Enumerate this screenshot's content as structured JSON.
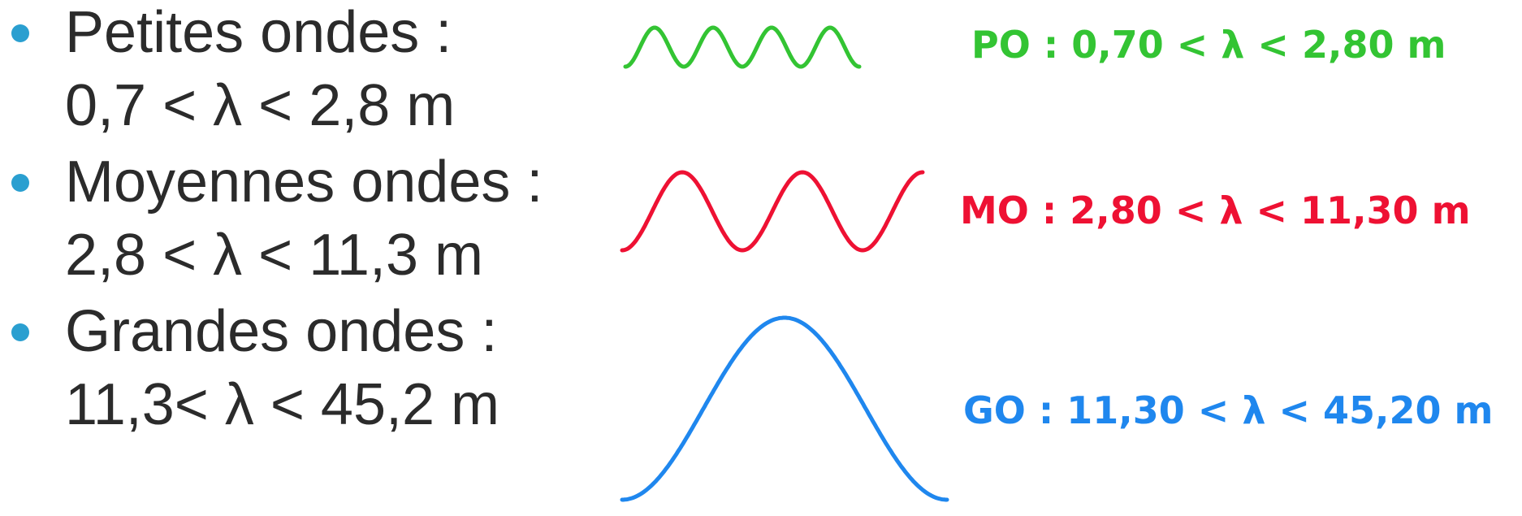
{
  "bands": [
    {
      "name": "Petites ondes :",
      "range": "0,7 < λ < 2,8 m",
      "label": "PO : 0,70 < λ < 2,80 m",
      "color": "#33c433",
      "cycles": 4
    },
    {
      "name": "Moyennes ondes :",
      "range": "2,8 < λ < 11,3 m",
      "label": "MO : 2,80 < λ < 11,30 m",
      "color": "#ee1133",
      "cycles": 2.5
    },
    {
      "name": "Grandes ondes :",
      "range": "11,3< λ < 45,2 m",
      "label": "GO : 11,30 < λ < 45,20 m",
      "color": "#1f87ee",
      "cycles": 1
    }
  ]
}
